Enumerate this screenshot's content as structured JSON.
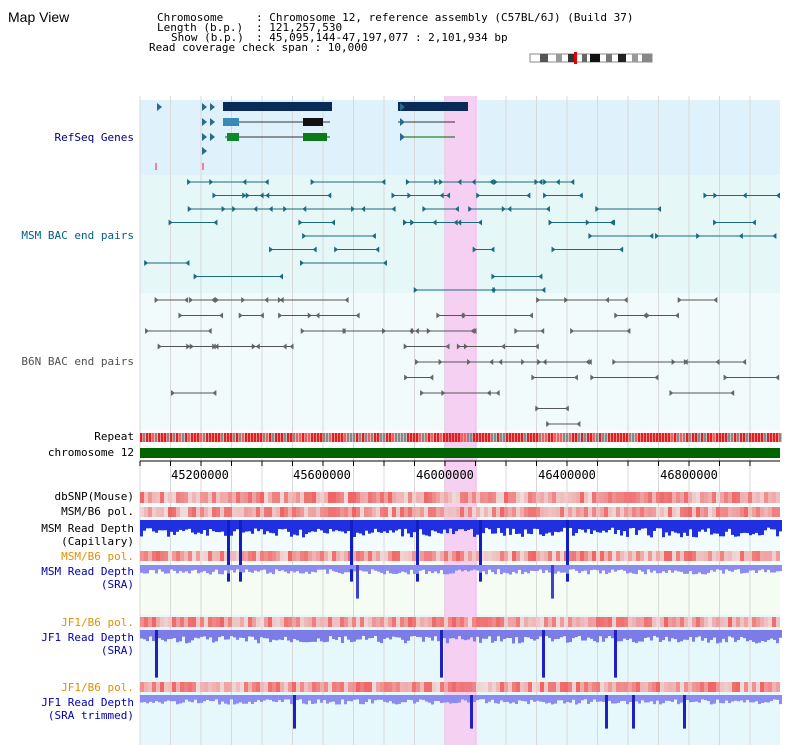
{
  "title": "Map View",
  "info": {
    "chromosome_key": "Chromosome",
    "chromosome_val": ": Chromosome 12, reference assembly (C57BL/6J) (Build 37)",
    "length_key": "Length (b.p.)",
    "length_val": ": 121,257,530",
    "show_key": "Show (b.p.)",
    "show_val": ": 45,095,144-47,197,077 : 2,101,934 bp",
    "coverage": "Read coverage check span : 10,000"
  },
  "tracks": {
    "refseq": "RefSeq Genes",
    "msm_bac": "MSM BAC end pairs",
    "b6n_bac": "B6N BAC end pairs",
    "repeat": "Repeat",
    "chromosome": "chromosome 12",
    "dbsnp": "dbSNP(Mouse)",
    "msm_b6_pol": "MSM/B6 pol.",
    "msm_rd_cap_1": "MSM Read Depth",
    "msm_rd_cap_2": "(Capillary)",
    "msm_b6_pol2": "MSM/B6 pol.",
    "msm_rd_sra_1": "MSM Read Depth",
    "msm_rd_sra_2": "(SRA)",
    "jf1_b6_pol": "JF1/B6 pol.",
    "jf1_rd_sra_1": "JF1 Read Depth",
    "jf1_rd_sra_2": "(SRA)",
    "jf1_b6_pol2": "JF1/B6 pol.",
    "jf1_rd_trim_1": "JF1 Read Depth",
    "jf1_rd_trim_2": "(SRA trimmed)"
  },
  "axis": {
    "ticks": [
      "45200000",
      "45600000",
      "46000000",
      "46400000",
      "46800000"
    ]
  },
  "colors": {
    "refseq_label": "#000080",
    "msm_label": "#006080",
    "b6n_label": "#505050",
    "orange_label": "#e09000",
    "blue_label": "#0000b0",
    "highlight": "#f5c8f0",
    "chromosome_bar": "#006400"
  }
}
